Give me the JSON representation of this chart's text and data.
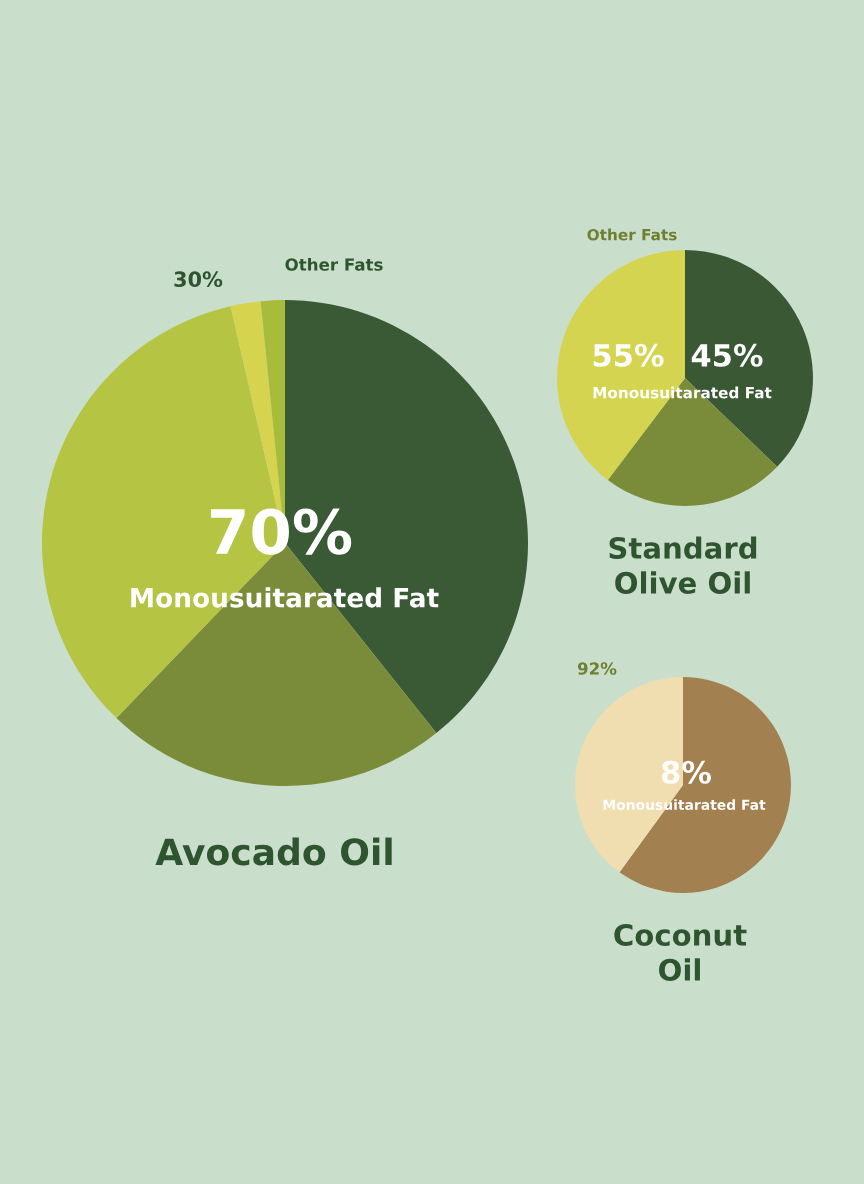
{
  "chart_data": [
    {
      "type": "pie",
      "title": "Avocado Oil",
      "categories": [
        null,
        null,
        null,
        null,
        null
      ],
      "values": [
        39.3,
        22.9,
        34.2,
        2.0,
        1.6
      ],
      "colors": [
        "#3a5a35",
        "#7a8c3a",
        "#b5c443",
        "#d6d44e",
        "#a8bc3c"
      ],
      "annotations": [
        "30%",
        "Other Fats",
        "70%",
        "Monousuitarated Fat"
      ]
    },
    {
      "type": "pie",
      "title": "Standard\nOlive Oil",
      "categories": [
        null,
        null,
        null
      ],
      "values": [
        37.2,
        23.1,
        39.7
      ],
      "colors": [
        "#3b5835",
        "#7a8c3a",
        "#d4d450"
      ],
      "annotations": [
        "Other Fats",
        "55%",
        "45%",
        "Monousuitarated Fat"
      ]
    },
    {
      "type": "pie",
      "title": "Coconut\nOil",
      "categories": [
        null,
        null
      ],
      "values": [
        60,
        40
      ],
      "colors": [
        "#a38050",
        "#f0ddb0"
      ],
      "annotations": [
        "92%",
        "8%",
        "Monousuitarated Fat"
      ]
    }
  ]
}
